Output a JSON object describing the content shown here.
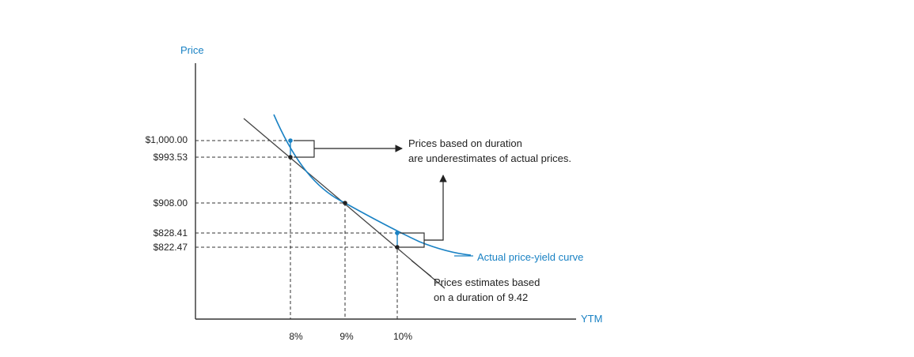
{
  "chart_data": {
    "type": "line",
    "ylabel": "Price",
    "xlabel": "YTM",
    "x_ticks": [
      "8%",
      "9%",
      "10%"
    ],
    "y_ticks": [
      "$1,000.00",
      "$993.53",
      "$908.00",
      "$828.41",
      "$822.47"
    ],
    "series": [
      {
        "name": "Actual price-yield curve",
        "color": "#1a82c4",
        "points": [
          {
            "x": 8,
            "y": 1000.0
          },
          {
            "x": 9,
            "y": 908.0
          },
          {
            "x": 10,
            "y": 828.41
          }
        ]
      },
      {
        "name": "Prices estimates based on a duration of 9.42",
        "color": "#333333",
        "points": [
          {
            "x": 8,
            "y": 993.53
          },
          {
            "x": 9,
            "y": 908.0
          },
          {
            "x": 10,
            "y": 822.47
          }
        ]
      }
    ],
    "annotations": {
      "underestimate_line1": "Prices based on duration",
      "underestimate_line2": "are underestimates of actual prices.",
      "curve_label": "Actual price-yield curve",
      "tangent_line1": "Prices estimates based",
      "tangent_line2": "on a duration of 9.42"
    },
    "grid": false
  }
}
